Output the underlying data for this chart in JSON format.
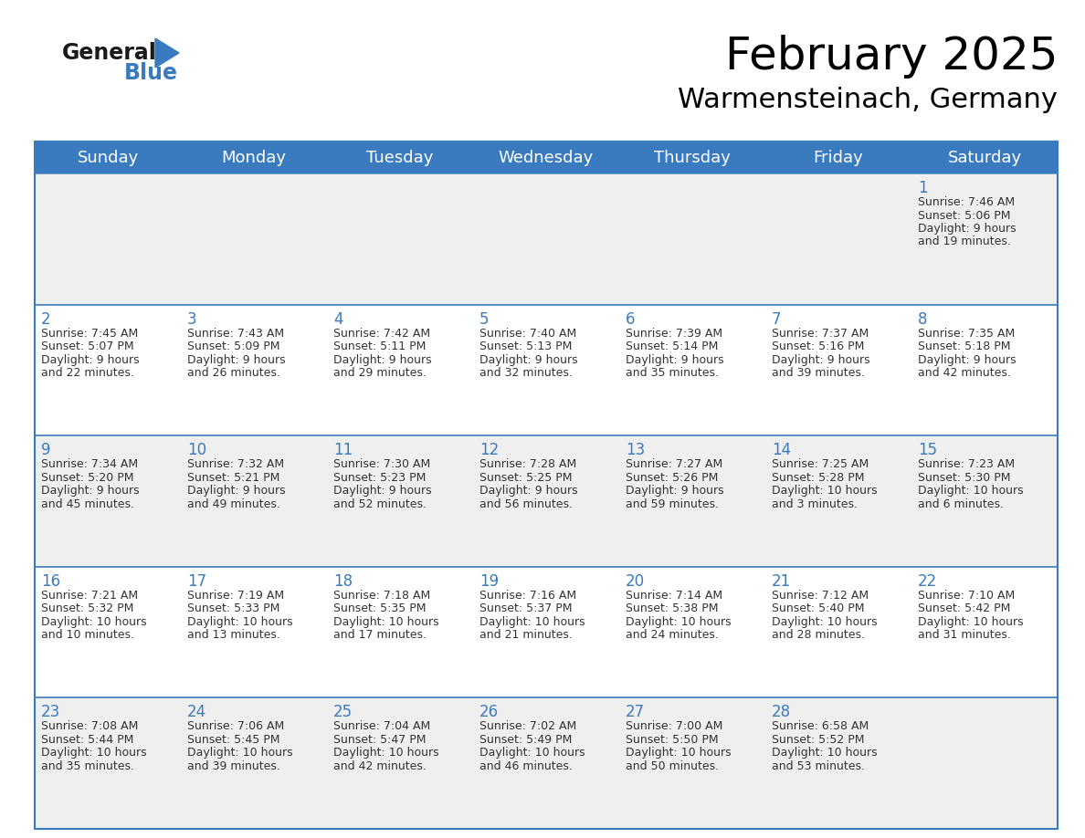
{
  "title": "February 2025",
  "subtitle": "Warmensteinach, Germany",
  "header_color": "#3a7bbf",
  "header_text_color": "#ffffff",
  "day_names": [
    "Sunday",
    "Monday",
    "Tuesday",
    "Wednesday",
    "Thursday",
    "Friday",
    "Saturday"
  ],
  "background_color": "#ffffff",
  "alt_row_color": "#efefef",
  "cell_border_color": "#3a7bbf",
  "date_text_color": "#3a7bbf",
  "info_text_color": "#333333",
  "days": [
    {
      "day": 1,
      "col": 6,
      "row": 0,
      "sunrise": "7:46 AM",
      "sunset": "5:06 PM",
      "daylight": "9 hours and 19 minutes"
    },
    {
      "day": 2,
      "col": 0,
      "row": 1,
      "sunrise": "7:45 AM",
      "sunset": "5:07 PM",
      "daylight": "9 hours and 22 minutes"
    },
    {
      "day": 3,
      "col": 1,
      "row": 1,
      "sunrise": "7:43 AM",
      "sunset": "5:09 PM",
      "daylight": "9 hours and 26 minutes"
    },
    {
      "day": 4,
      "col": 2,
      "row": 1,
      "sunrise": "7:42 AM",
      "sunset": "5:11 PM",
      "daylight": "9 hours and 29 minutes"
    },
    {
      "day": 5,
      "col": 3,
      "row": 1,
      "sunrise": "7:40 AM",
      "sunset": "5:13 PM",
      "daylight": "9 hours and 32 minutes"
    },
    {
      "day": 6,
      "col": 4,
      "row": 1,
      "sunrise": "7:39 AM",
      "sunset": "5:14 PM",
      "daylight": "9 hours and 35 minutes"
    },
    {
      "day": 7,
      "col": 5,
      "row": 1,
      "sunrise": "7:37 AM",
      "sunset": "5:16 PM",
      "daylight": "9 hours and 39 minutes"
    },
    {
      "day": 8,
      "col": 6,
      "row": 1,
      "sunrise": "7:35 AM",
      "sunset": "5:18 PM",
      "daylight": "9 hours and 42 minutes"
    },
    {
      "day": 9,
      "col": 0,
      "row": 2,
      "sunrise": "7:34 AM",
      "sunset": "5:20 PM",
      "daylight": "9 hours and 45 minutes"
    },
    {
      "day": 10,
      "col": 1,
      "row": 2,
      "sunrise": "7:32 AM",
      "sunset": "5:21 PM",
      "daylight": "9 hours and 49 minutes"
    },
    {
      "day": 11,
      "col": 2,
      "row": 2,
      "sunrise": "7:30 AM",
      "sunset": "5:23 PM",
      "daylight": "9 hours and 52 minutes"
    },
    {
      "day": 12,
      "col": 3,
      "row": 2,
      "sunrise": "7:28 AM",
      "sunset": "5:25 PM",
      "daylight": "9 hours and 56 minutes"
    },
    {
      "day": 13,
      "col": 4,
      "row": 2,
      "sunrise": "7:27 AM",
      "sunset": "5:26 PM",
      "daylight": "9 hours and 59 minutes"
    },
    {
      "day": 14,
      "col": 5,
      "row": 2,
      "sunrise": "7:25 AM",
      "sunset": "5:28 PM",
      "daylight": "10 hours and 3 minutes"
    },
    {
      "day": 15,
      "col": 6,
      "row": 2,
      "sunrise": "7:23 AM",
      "sunset": "5:30 PM",
      "daylight": "10 hours and 6 minutes"
    },
    {
      "day": 16,
      "col": 0,
      "row": 3,
      "sunrise": "7:21 AM",
      "sunset": "5:32 PM",
      "daylight": "10 hours and 10 minutes"
    },
    {
      "day": 17,
      "col": 1,
      "row": 3,
      "sunrise": "7:19 AM",
      "sunset": "5:33 PM",
      "daylight": "10 hours and 13 minutes"
    },
    {
      "day": 18,
      "col": 2,
      "row": 3,
      "sunrise": "7:18 AM",
      "sunset": "5:35 PM",
      "daylight": "10 hours and 17 minutes"
    },
    {
      "day": 19,
      "col": 3,
      "row": 3,
      "sunrise": "7:16 AM",
      "sunset": "5:37 PM",
      "daylight": "10 hours and 21 minutes"
    },
    {
      "day": 20,
      "col": 4,
      "row": 3,
      "sunrise": "7:14 AM",
      "sunset": "5:38 PM",
      "daylight": "10 hours and 24 minutes"
    },
    {
      "day": 21,
      "col": 5,
      "row": 3,
      "sunrise": "7:12 AM",
      "sunset": "5:40 PM",
      "daylight": "10 hours and 28 minutes"
    },
    {
      "day": 22,
      "col": 6,
      "row": 3,
      "sunrise": "7:10 AM",
      "sunset": "5:42 PM",
      "daylight": "10 hours and 31 minutes"
    },
    {
      "day": 23,
      "col": 0,
      "row": 4,
      "sunrise": "7:08 AM",
      "sunset": "5:44 PM",
      "daylight": "10 hours and 35 minutes"
    },
    {
      "day": 24,
      "col": 1,
      "row": 4,
      "sunrise": "7:06 AM",
      "sunset": "5:45 PM",
      "daylight": "10 hours and 39 minutes"
    },
    {
      "day": 25,
      "col": 2,
      "row": 4,
      "sunrise": "7:04 AM",
      "sunset": "5:47 PM",
      "daylight": "10 hours and 42 minutes"
    },
    {
      "day": 26,
      "col": 3,
      "row": 4,
      "sunrise": "7:02 AM",
      "sunset": "5:49 PM",
      "daylight": "10 hours and 46 minutes"
    },
    {
      "day": 27,
      "col": 4,
      "row": 4,
      "sunrise": "7:00 AM",
      "sunset": "5:50 PM",
      "daylight": "10 hours and 50 minutes"
    },
    {
      "day": 28,
      "col": 5,
      "row": 4,
      "sunrise": "6:58 AM",
      "sunset": "5:52 PM",
      "daylight": "10 hours and 53 minutes"
    }
  ],
  "logo_text1": "General",
  "logo_text2": "Blue",
  "logo_color1": "#1a1a1a",
  "logo_color2": "#3a7bbf",
  "logo_triangle_color": "#3a7bbf",
  "title_fontsize": 36,
  "subtitle_fontsize": 22,
  "header_fontsize": 13,
  "day_num_fontsize": 12,
  "info_fontsize": 9
}
